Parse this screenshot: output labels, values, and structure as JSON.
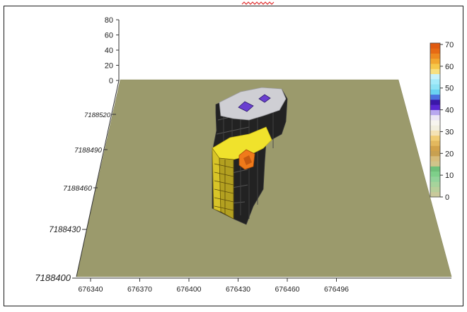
{
  "chart_data": {
    "type": "3d-block-model",
    "title": "",
    "xlabel": "",
    "ylabel": "",
    "zlabel": "",
    "x_ticks": [
      "676340",
      "676370",
      "676400",
      "676430",
      "676460",
      "676496"
    ],
    "y_ticks": [
      "7188400",
      "7188430",
      "7188460",
      "7188490",
      "7188520"
    ],
    "z_ticks": [
      "0",
      "20",
      "40",
      "60",
      "80"
    ],
    "zlim": [
      0,
      80
    ],
    "colorbar": {
      "ticks": [
        "0",
        "10",
        "20",
        "30",
        "40",
        "50",
        "60",
        "70"
      ],
      "range": [
        0,
        70
      ]
    },
    "base_plane_color": "#9b9a6c",
    "grid": false
  }
}
